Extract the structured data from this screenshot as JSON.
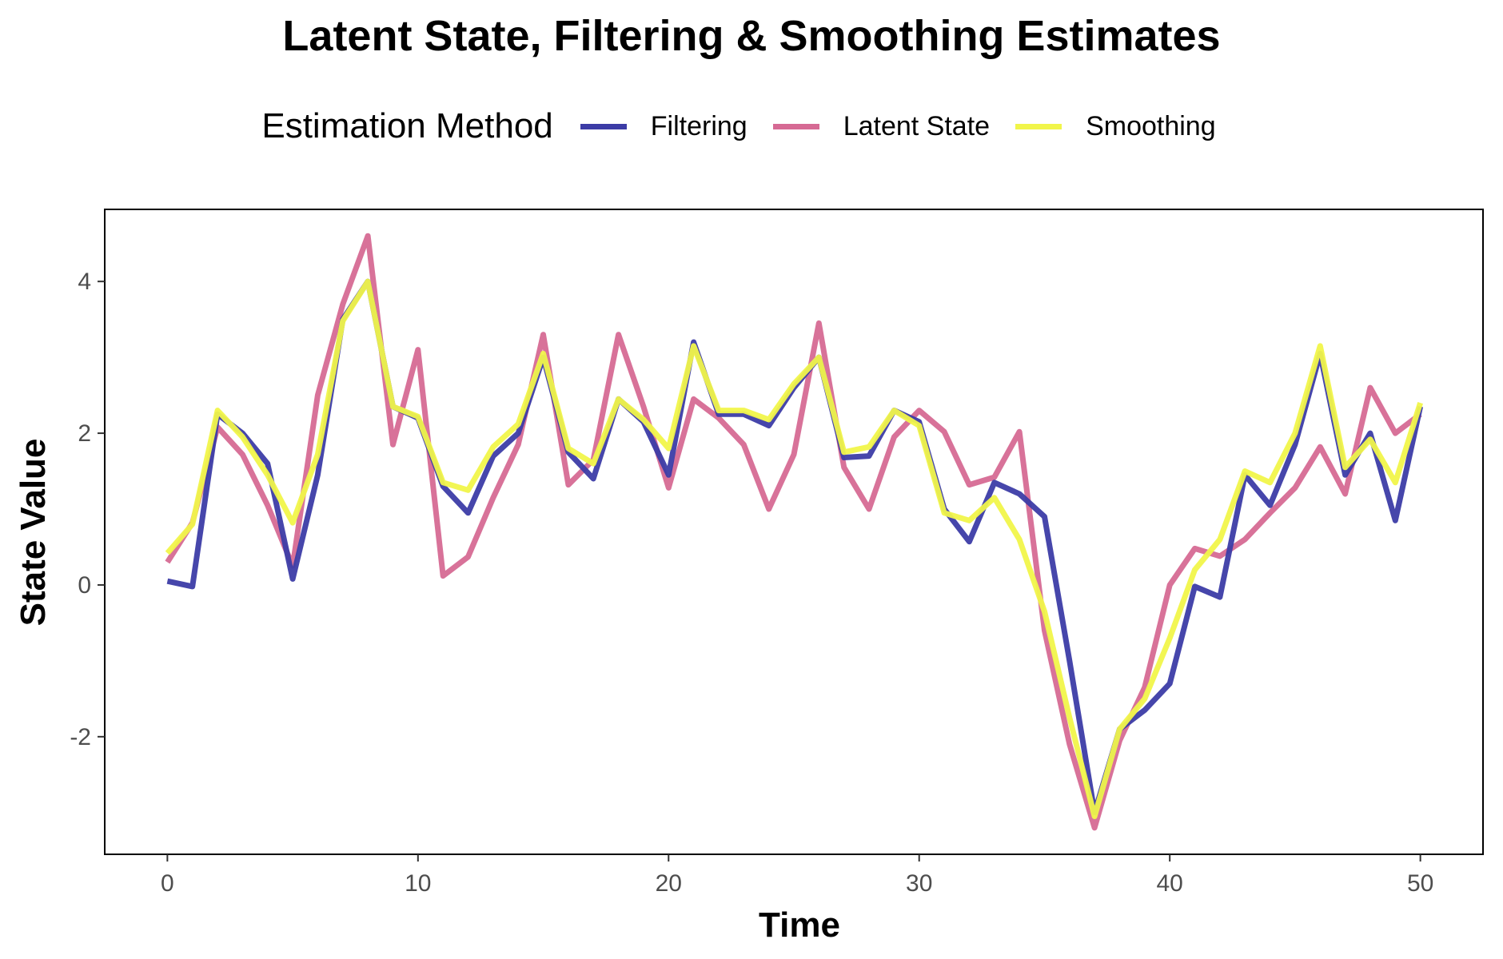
{
  "chart_data": {
    "type": "line",
    "title": "Latent State, Filtering & Smoothing Estimates",
    "xlabel": "Time",
    "ylabel": "State Value",
    "xlim": [
      -2.5,
      52.5
    ],
    "ylim": [
      -3.55,
      4.95
    ],
    "x_ticks": [
      0,
      10,
      20,
      30,
      40,
      50
    ],
    "y_ticks": [
      -2,
      0,
      2,
      4
    ],
    "y_tick_labels": [
      "-2",
      "0",
      "2",
      "4"
    ],
    "grid": false,
    "legend_position": "top",
    "legend_title": "Estimation Method",
    "x": [
      0,
      1,
      2,
      3,
      4,
      5,
      6,
      7,
      8,
      9,
      10,
      11,
      12,
      13,
      14,
      15,
      16,
      17,
      18,
      19,
      20,
      21,
      22,
      23,
      24,
      25,
      26,
      27,
      28,
      29,
      30,
      31,
      32,
      33,
      34,
      35,
      36,
      37,
      38,
      39,
      40,
      41,
      42,
      43,
      44,
      45,
      46,
      47,
      48,
      49,
      50
    ],
    "series": [
      {
        "name": "Filtering",
        "color": "#3c3ca6",
        "values": [
          0.05,
          -0.02,
          2.25,
          2.0,
          1.6,
          0.08,
          1.45,
          3.5,
          4.0,
          2.35,
          2.2,
          1.3,
          0.95,
          1.7,
          2.0,
          3.0,
          1.75,
          1.4,
          2.45,
          2.15,
          1.45,
          3.2,
          2.25,
          2.25,
          2.1,
          2.6,
          3.0,
          1.68,
          1.7,
          2.3,
          2.15,
          1.0,
          0.57,
          1.35,
          1.2,
          0.9,
          -1.0,
          -3.0,
          -1.9,
          -1.65,
          -1.3,
          -0.02,
          -0.16,
          1.45,
          1.05,
          1.85,
          3.05,
          1.45,
          2.0,
          0.85,
          2.35
        ]
      },
      {
        "name": "Latent State",
        "color": "#d66a94",
        "values": [
          0.3,
          0.82,
          2.08,
          1.72,
          1.05,
          0.25,
          2.5,
          3.7,
          4.6,
          1.85,
          3.1,
          0.12,
          0.37,
          1.15,
          1.85,
          3.3,
          1.32,
          1.65,
          3.3,
          2.35,
          1.28,
          2.45,
          2.2,
          1.85,
          1.0,
          1.72,
          3.45,
          1.55,
          1.0,
          1.95,
          2.3,
          2.02,
          1.32,
          1.42,
          2.02,
          -0.6,
          -2.1,
          -3.2,
          -2.05,
          -1.35,
          0.0,
          0.48,
          0.38,
          0.6,
          0.95,
          1.28,
          1.82,
          1.2,
          2.6,
          2.0,
          2.25
        ]
      },
      {
        "name": "Smoothing",
        "color": "#f1f54a",
        "values": [
          0.42,
          0.8,
          2.3,
          1.95,
          1.45,
          0.82,
          1.72,
          3.48,
          4.0,
          2.35,
          2.22,
          1.35,
          1.25,
          1.82,
          2.12,
          3.05,
          1.8,
          1.6,
          2.45,
          2.18,
          1.8,
          3.15,
          2.3,
          2.3,
          2.18,
          2.65,
          3.0,
          1.75,
          1.82,
          2.3,
          2.1,
          0.95,
          0.85,
          1.15,
          0.6,
          -0.35,
          -1.75,
          -3.05,
          -1.9,
          -1.5,
          -0.7,
          0.2,
          0.6,
          1.5,
          1.35,
          2.0,
          3.15,
          1.55,
          1.92,
          1.35,
          2.4
        ]
      }
    ]
  }
}
